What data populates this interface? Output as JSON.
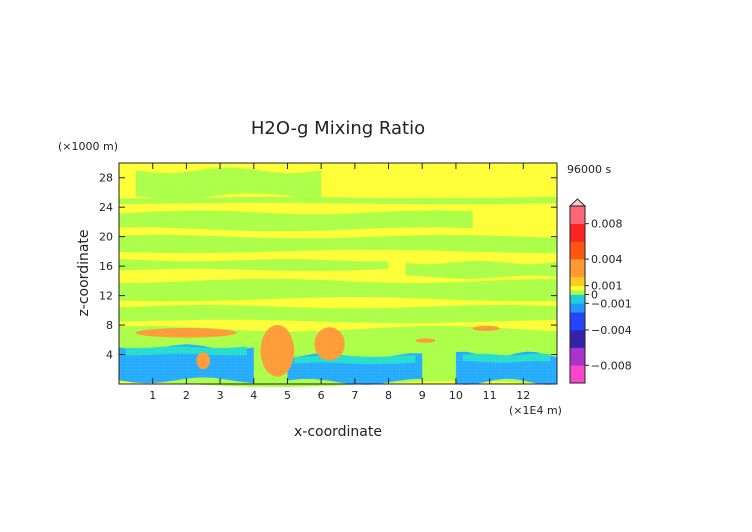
{
  "chart_data": {
    "type": "heatmap",
    "title": "H2O-g Mixing Ratio",
    "xlabel": "x-coordinate",
    "ylabel": "z-coordinate",
    "x_unit": "(×1E4 m)",
    "y_unit": "(×1000 m)",
    "time_label": "96000 s",
    "xlim": [
      0,
      13
    ],
    "ylim": [
      0,
      30
    ],
    "x_ticks": [
      1,
      2,
      3,
      4,
      5,
      6,
      7,
      8,
      9,
      10,
      11,
      12
    ],
    "x_tick_labels": [
      "1",
      "2",
      "3",
      "4",
      "5",
      "6",
      "7",
      "8",
      "9",
      "10",
      "11",
      "12"
    ],
    "y_ticks": [
      4,
      8,
      12,
      16,
      20,
      24,
      28
    ],
    "y_tick_labels": [
      "4",
      "8",
      "12",
      "16",
      "20",
      "24",
      "28"
    ],
    "colorbar": {
      "range": [
        -0.01,
        0.01
      ],
      "extend": "max",
      "labels": [
        {
          "value": 0.008,
          "text": "0.008"
        },
        {
          "value": 0.004,
          "text": "0.004"
        },
        {
          "value": 0.001,
          "text": "0.001"
        },
        {
          "value": 0.0,
          "text": "0"
        },
        {
          "value": -0.001,
          "text": "−0.001"
        },
        {
          "value": -0.004,
          "text": "−0.004"
        },
        {
          "value": -0.008,
          "text": "−0.008"
        }
      ]
    },
    "colors": {
      "background_field": "#ffff33",
      "green": "#aaff44",
      "orange": "#ff9933",
      "blue": "#22aaff",
      "cyan": "#22ddcc"
    },
    "regions": {
      "green_bands": [
        {
          "x": [
            0.5,
            6.0
          ],
          "z": [
            25.5,
            29.0
          ]
        },
        {
          "x": [
            0.0,
            13.0
          ],
          "z": [
            24.5,
            25.3
          ]
        },
        {
          "x": [
            0.0,
            10.5
          ],
          "z": [
            21.0,
            23.3
          ]
        },
        {
          "x": [
            0.0,
            13.0
          ],
          "z": [
            18.0,
            20.0
          ]
        },
        {
          "x": [
            0.0,
            8.0
          ],
          "z": [
            15.5,
            16.8
          ]
        },
        {
          "x": [
            8.5,
            13.0
          ],
          "z": [
            14.5,
            16.5
          ]
        },
        {
          "x": [
            0.0,
            13.0
          ],
          "z": [
            11.5,
            14.0
          ]
        },
        {
          "x": [
            0.0,
            13.0
          ],
          "z": [
            8.5,
            10.5
          ]
        },
        {
          "x": [
            0.0,
            13.0
          ],
          "z": [
            0.0,
            7.5
          ]
        }
      ],
      "orange_patches": [
        {
          "x": [
            0.5,
            3.5
          ],
          "z": [
            6.3,
            7.6
          ]
        },
        {
          "x": [
            4.2,
            5.2
          ],
          "z": [
            1.0,
            8.0
          ]
        },
        {
          "x": [
            5.8,
            6.7
          ],
          "z": [
            3.2,
            7.7
          ]
        },
        {
          "x": [
            2.3,
            2.7
          ],
          "z": [
            2.0,
            4.3
          ]
        },
        {
          "x": [
            10.5,
            11.3
          ],
          "z": [
            7.2,
            7.9
          ]
        },
        {
          "x": [
            8.8,
            9.4
          ],
          "z": [
            5.6,
            6.2
          ]
        }
      ],
      "blue_patches": [
        {
          "x": [
            0.0,
            4.0
          ],
          "z": [
            0.5,
            5.0
          ]
        },
        {
          "x": [
            5.0,
            9.0
          ],
          "z": [
            0.3,
            3.8
          ]
        },
        {
          "x": [
            10.0,
            13.0
          ],
          "z": [
            0.3,
            4.0
          ]
        }
      ]
    }
  }
}
